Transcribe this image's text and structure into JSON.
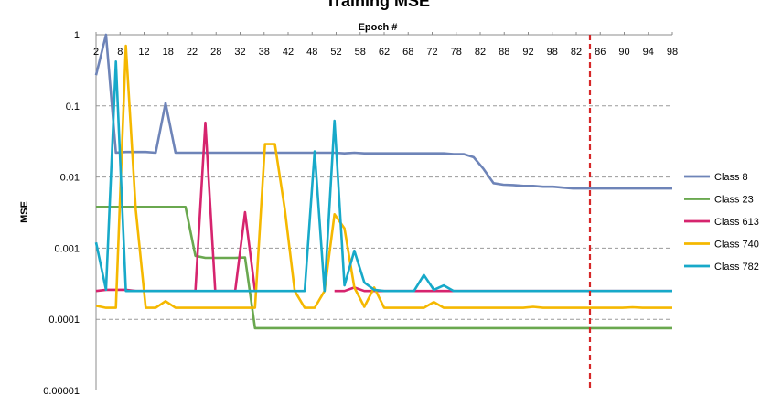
{
  "chart_data": {
    "type": "line",
    "title": "Training MSE",
    "xlabel": "Epoch #",
    "ylabel": "MSE",
    "y_scale": "log",
    "ylim": [
      1e-05,
      1
    ],
    "y_ticks": [
      "1",
      "0.1",
      "0.01",
      "0.001",
      "0.0001",
      "0.00001"
    ],
    "x_ticks": [
      "2",
      "8",
      "12",
      "18",
      "22",
      "28",
      "32",
      "38",
      "42",
      "48",
      "52",
      "58",
      "62",
      "68",
      "72",
      "78",
      "82",
      "88",
      "92",
      "98",
      "82",
      "86",
      "90",
      "94",
      "98"
    ],
    "grid": "horizontal dashed",
    "legend_position": "right",
    "vline": {
      "epoch": 86,
      "color": "#d62728",
      "style": "dashed"
    },
    "series": [
      {
        "name": "Class 8",
        "color": "#6e84b8",
        "values": [
          0.27,
          1.0,
          0.022,
          0.0225,
          0.0225,
          0.0225,
          0.022,
          0.11,
          0.022,
          0.022,
          0.022,
          0.022,
          0.022,
          0.022,
          0.022,
          0.022,
          0.022,
          0.022,
          0.022,
          0.022,
          0.022,
          0.022,
          0.022,
          0.022,
          0.022,
          0.0215,
          0.022,
          0.0215,
          0.0215,
          0.0215,
          0.0215,
          0.0215,
          0.0215,
          0.0215,
          0.0215,
          0.0215,
          0.021,
          0.021,
          0.019,
          0.013,
          0.0082,
          0.0078,
          0.0077,
          0.0075,
          0.0075,
          0.0073,
          0.0073,
          0.0071,
          0.0069,
          0.0069,
          0.0069,
          0.0069,
          0.0069,
          0.0069,
          0.0069,
          0.0069,
          0.0069,
          0.0069,
          0.0069
        ]
      },
      {
        "name": "Class 23",
        "color": "#6aa84f",
        "values": [
          0.0038,
          0.0038,
          0.0038,
          0.0038,
          0.0038,
          0.0038,
          0.0038,
          0.0038,
          0.0038,
          0.0038,
          0.00078,
          0.00073,
          0.00073,
          0.00073,
          0.00073,
          0.00074,
          7.5e-05,
          7.5e-05,
          7.5e-05,
          7.5e-05,
          7.5e-05,
          7.5e-05,
          7.5e-05,
          7.5e-05,
          7.5e-05,
          7.5e-05,
          7.5e-05,
          7.5e-05,
          7.5e-05,
          7.5e-05,
          7.5e-05,
          7.5e-05,
          7.5e-05,
          7.5e-05,
          7.5e-05,
          7.5e-05,
          7.5e-05,
          7.5e-05,
          7.5e-05,
          7.5e-05,
          7.5e-05,
          7.5e-05,
          7.5e-05,
          7.5e-05,
          7.5e-05,
          7.5e-05,
          7.5e-05,
          7.5e-05,
          7.5e-05,
          7.5e-05,
          7.5e-05,
          7.5e-05,
          7.5e-05,
          7.5e-05,
          7.5e-05,
          7.5e-05,
          7.5e-05,
          7.5e-05,
          7.5e-05
        ]
      },
      {
        "name": "Class 613",
        "color": "#d6246e",
        "values": [
          0.00025,
          0.00026,
          0.00026,
          0.00026,
          0.00025,
          0.00025,
          0.00025,
          0.00025,
          0.00025,
          0.00025,
          0.00025,
          0.058,
          0.00025,
          0.00025,
          0.00025,
          0.0032,
          0.00025,
          null,
          null,
          null,
          null,
          null,
          null,
          null,
          0.00025,
          0.00025,
          0.00028,
          0.00025,
          0.00025,
          0.00025,
          0.00025,
          0.00025,
          0.00025,
          0.00025,
          0.00025,
          0.00025,
          0.00025,
          0.00025,
          0.00025,
          0.00025,
          0.00025,
          0.00025,
          0.00025,
          0.00025,
          0.00025,
          0.00025,
          0.00025,
          0.00025,
          0.00025,
          0.00025,
          0.00025,
          0.00025,
          0.00025,
          0.00025,
          0.00025,
          0.00025,
          0.00025,
          0.00025,
          0.00025
        ]
      },
      {
        "name": "Class 740",
        "color": "#f5b800",
        "values": [
          0.000155,
          0.000145,
          0.000145,
          0.7,
          0.0035,
          0.000145,
          0.000145,
          0.00018,
          0.000145,
          0.000145,
          0.000145,
          0.000145,
          0.000145,
          0.000145,
          0.000145,
          0.000145,
          0.000145,
          0.029,
          0.029,
          0.0035,
          0.00025,
          0.000145,
          0.000145,
          0.00025,
          0.003,
          0.0019,
          0.00028,
          0.00015,
          0.00028,
          0.000145,
          0.000145,
          0.000145,
          0.000145,
          0.000145,
          0.000175,
          0.000145,
          0.000145,
          0.000145,
          0.000145,
          0.000145,
          0.000145,
          0.000145,
          0.000145,
          0.000145,
          0.00015,
          0.000145,
          0.000145,
          0.000145,
          0.000145,
          0.000145,
          0.000145,
          0.000145,
          0.000145,
          0.000145,
          0.000148,
          0.000145,
          0.000145,
          0.000145,
          0.000145
        ]
      },
      {
        "name": "Class 782",
        "color": "#17a9c9",
        "values": [
          0.0012,
          0.00026,
          0.42,
          0.00025,
          0.00025,
          0.00025,
          0.00025,
          0.00025,
          0.00025,
          0.00025,
          0.00025,
          0.00025,
          0.00025,
          0.00025,
          0.00025,
          0.00025,
          0.00025,
          0.00025,
          0.00025,
          0.00025,
          0.00025,
          0.00025,
          0.023,
          0.00025,
          0.062,
          0.0003,
          0.00092,
          0.00033,
          0.00026,
          0.00025,
          0.00025,
          0.00025,
          0.00025,
          0.00042,
          0.00026,
          0.0003,
          0.00025,
          0.00025,
          0.00025,
          0.00025,
          0.00025,
          0.00025,
          0.00025,
          0.00025,
          0.00025,
          0.00025,
          0.00025,
          0.00025,
          0.00025,
          0.00025,
          0.00025,
          0.00025,
          0.00025,
          0.00025,
          0.00025,
          0.00025,
          0.00025,
          0.00025,
          0.00025
        ]
      }
    ]
  }
}
